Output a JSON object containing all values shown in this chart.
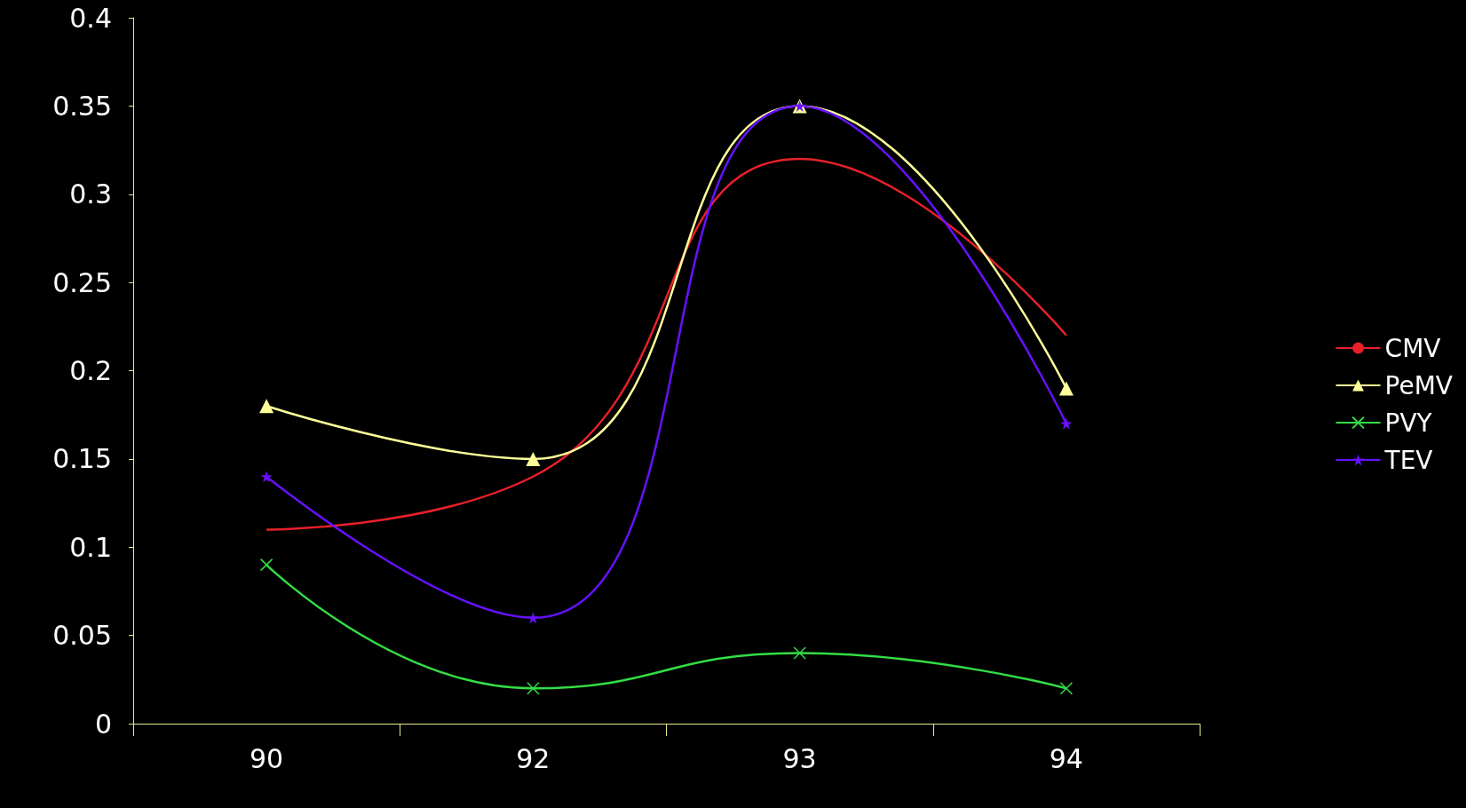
{
  "chart_data": {
    "type": "line",
    "categories": [
      "90",
      "92",
      "93",
      "94"
    ],
    "series": [
      {
        "name": "CMV",
        "color": "#e8202a",
        "marker": "none",
        "values": [
          0.11,
          0.14,
          0.32,
          0.22
        ]
      },
      {
        "name": "PeMV",
        "color": "#ffff99",
        "marker": "triangle",
        "values": [
          0.18,
          0.15,
          0.35,
          0.19
        ]
      },
      {
        "name": "PVY",
        "color": "#33dd44",
        "marker": "cross",
        "values": [
          0.09,
          0.02,
          0.04,
          0.02
        ]
      },
      {
        "name": "TEV",
        "color": "#6611ff",
        "marker": "star",
        "values": [
          0.14,
          0.06,
          0.35,
          0.17
        ]
      }
    ],
    "ylim": [
      0,
      0.4
    ],
    "yticks": [
      0,
      0.05,
      0.1,
      0.15,
      0.2,
      0.25,
      0.3,
      0.35,
      0.4
    ],
    "grid": false,
    "legend": "right",
    "line_style": "solid"
  }
}
